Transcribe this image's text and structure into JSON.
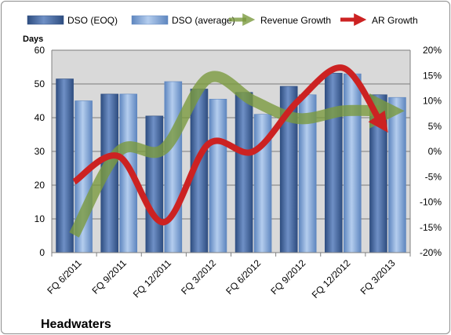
{
  "chart_data": {
    "type": "bar",
    "title": "",
    "company": "Headwaters",
    "ylabel": "Days",
    "categories": [
      "FQ 6/2011",
      "FQ 9/2011",
      "FQ 12/2011",
      "FQ 3/2012",
      "FQ 6/2012",
      "FQ 9/2012",
      "FQ 12/2012",
      "FQ 3/2013"
    ],
    "ylim": [
      0,
      60
    ],
    "yticks": [
      0,
      10,
      20,
      30,
      40,
      50,
      60
    ],
    "y2lim": [
      -20,
      20
    ],
    "y2ticks": [
      "-20%",
      "-15%",
      "-10%",
      "-5%",
      "0%",
      "5%",
      "10%",
      "15%",
      "20%"
    ],
    "grid": true,
    "legend_position": "top",
    "bar_series": [
      {
        "name": "DSO (EOQ)",
        "color": "#4f6fa3",
        "values": [
          51.5,
          47,
          40.5,
          48.5,
          47.5,
          49.3,
          53.2,
          46.8
        ]
      },
      {
        "name": "DSO (average)",
        "color": "#8eb1dc",
        "values": [
          45,
          47,
          50.7,
          45.5,
          41,
          46.8,
          53,
          46
        ]
      }
    ],
    "line_series": [
      {
        "name": "Revenue Growth",
        "color": "#7a9a3e",
        "axis": "secondary",
        "values": [
          -16.5,
          0,
          0.5,
          14.5,
          10,
          6.5,
          8,
          8
        ]
      },
      {
        "name": "AR Growth",
        "color": "#cc2222",
        "axis": "secondary",
        "values": [
          -6,
          -1,
          -14,
          1.5,
          0,
          10,
          16.5,
          6
        ]
      }
    ]
  }
}
